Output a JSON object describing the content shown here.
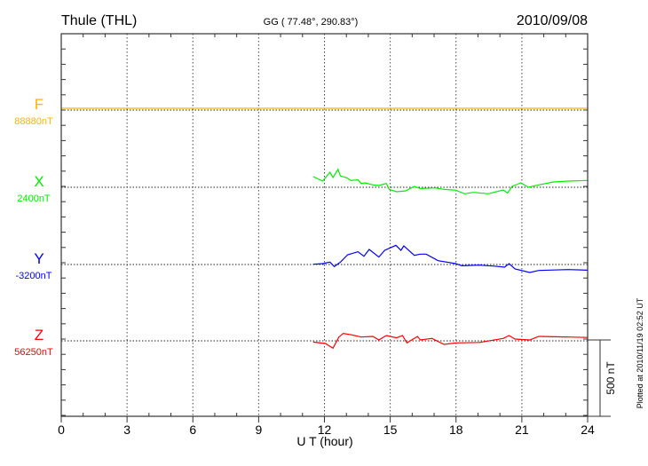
{
  "chart_data": {
    "type": "line",
    "title": "Thule (THL)",
    "subtitle": "GG ( 77.48°, 290.83°)",
    "date": "2010/09/08",
    "xlabel": "U T (hour)",
    "xlim": [
      0,
      24
    ],
    "x_ticks": [
      "0",
      "3",
      "6",
      "9",
      "12",
      "15",
      "18",
      "21",
      "24"
    ],
    "scale_bar_label": "500 nT",
    "scale_bar_nT": 500,
    "plotted_note": "Plotted at 2010/11/19 02:52 UT",
    "grid": true,
    "series": [
      {
        "name": "F",
        "baseline_label": "88880nT",
        "color": "#ffb300",
        "points": [
          [
            0,
            6
          ],
          [
            24,
            6
          ]
        ]
      },
      {
        "name": "X",
        "baseline_label": "2400nT",
        "color": "#00ee00",
        "points": [
          [
            11.49,
            64
          ],
          [
            11.92,
            35
          ],
          [
            12.25,
            93
          ],
          [
            12.39,
            58
          ],
          [
            12.62,
            112
          ],
          [
            12.73,
            68
          ],
          [
            13.0,
            58
          ],
          [
            13.2,
            39
          ],
          [
            13.53,
            43
          ],
          [
            13.67,
            19
          ],
          [
            13.87,
            23
          ],
          [
            14.21,
            10
          ],
          [
            14.48,
            6
          ],
          [
            14.82,
            19
          ],
          [
            14.95,
            -19
          ],
          [
            15.29,
            -35
          ],
          [
            15.7,
            -29
          ],
          [
            16.1,
            0
          ],
          [
            16.37,
            -14
          ],
          [
            17.04,
            -10
          ],
          [
            17.45,
            -19
          ],
          [
            17.99,
            -25
          ],
          [
            18.39,
            -48
          ],
          [
            18.8,
            -39
          ],
          [
            19.47,
            -48
          ],
          [
            20.15,
            -23
          ],
          [
            20.35,
            -43
          ],
          [
            20.55,
            0
          ],
          [
            20.96,
            23
          ],
          [
            21.3,
            -6
          ],
          [
            21.77,
            10
          ],
          [
            22.44,
            29
          ],
          [
            23.12,
            35
          ],
          [
            23.99,
            39
          ]
        ]
      },
      {
        "name": "Y",
        "baseline_label": "-3200nT",
        "color": "#0000ff",
        "points": [
          [
            11.49,
            -4
          ],
          [
            11.92,
            0
          ],
          [
            12.25,
            10
          ],
          [
            12.45,
            -19
          ],
          [
            12.73,
            10
          ],
          [
            13.06,
            58
          ],
          [
            13.53,
            78
          ],
          [
            13.8,
            48
          ],
          [
            14.04,
            93
          ],
          [
            14.48,
            43
          ],
          [
            14.75,
            87
          ],
          [
            15.26,
            120
          ],
          [
            15.49,
            87
          ],
          [
            15.62,
            116
          ],
          [
            16.1,
            54
          ],
          [
            16.37,
            62
          ],
          [
            16.64,
            62
          ],
          [
            17.18,
            19
          ],
          [
            17.99,
            0
          ],
          [
            18.26,
            -14
          ],
          [
            19.07,
            -10
          ],
          [
            19.74,
            -16
          ],
          [
            20.21,
            -23
          ],
          [
            20.42,
            0
          ],
          [
            20.69,
            -35
          ],
          [
            21.36,
            -58
          ],
          [
            21.77,
            -45
          ],
          [
            23.12,
            -39
          ],
          [
            23.99,
            -43
          ]
        ]
      },
      {
        "name": "Z",
        "baseline_label": "56250nT",
        "color": "#ff0000",
        "points": [
          [
            11.49,
            -14
          ],
          [
            12.05,
            -23
          ],
          [
            12.39,
            -54
          ],
          [
            12.66,
            19
          ],
          [
            12.86,
            43
          ],
          [
            13.26,
            33
          ],
          [
            13.67,
            19
          ],
          [
            14.21,
            23
          ],
          [
            14.48,
            0
          ],
          [
            14.82,
            29
          ],
          [
            15.29,
            14
          ],
          [
            15.56,
            29
          ],
          [
            15.76,
            -19
          ],
          [
            16.24,
            23
          ],
          [
            16.37,
            0
          ],
          [
            16.91,
            10
          ],
          [
            17.45,
            -29
          ],
          [
            17.99,
            -19
          ],
          [
            19.07,
            -16
          ],
          [
            20.15,
            10
          ],
          [
            20.42,
            29
          ],
          [
            20.69,
            6
          ],
          [
            21.36,
            0
          ],
          [
            21.77,
            23
          ],
          [
            23.12,
            19
          ],
          [
            23.99,
            16
          ]
        ]
      }
    ]
  }
}
